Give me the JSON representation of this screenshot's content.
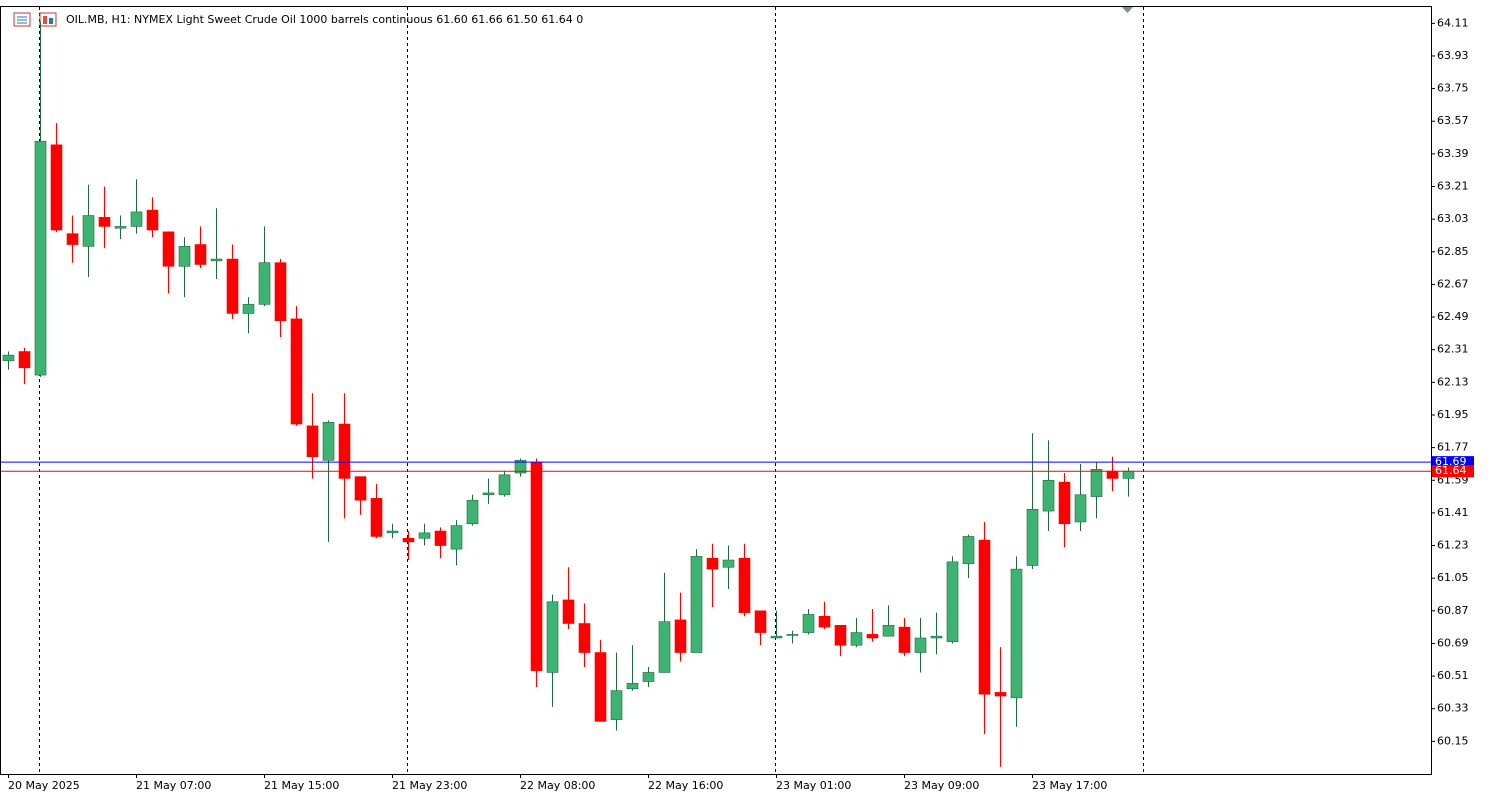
{
  "chart_data": {
    "type": "candlestick",
    "title": "OIL.MB, H1:  NYMEX Light Sweet Crude Oil 1000 barrels continuous  61.60 61.66 61.50 61.64  0",
    "categories": [
      "20 May 2025",
      null,
      null,
      null,
      null,
      null,
      null,
      null,
      "21 May 07:00",
      null,
      null,
      null,
      null,
      null,
      null,
      null,
      "21 May 15:00",
      null,
      null,
      null,
      null,
      null,
      null,
      null,
      "21 May 23:00",
      null,
      null,
      null,
      null,
      null,
      null,
      null,
      "22 May 08:00",
      null,
      null,
      null,
      null,
      null,
      null,
      null,
      "22 May 16:00",
      null,
      null,
      null,
      null,
      null,
      null,
      null,
      "23 May 01:00",
      null,
      null,
      null,
      null,
      null,
      null,
      null,
      "23 May 09:00",
      null,
      null,
      null,
      null,
      null,
      null,
      null,
      "23 May 17:00",
      null,
      null,
      null,
      null,
      null,
      null
    ],
    "open": [
      62.25,
      62.3,
      62.17,
      63.44,
      62.95,
      62.88,
      63.04,
      62.98,
      62.99,
      63.08,
      62.96,
      62.77,
      62.89,
      62.8,
      62.81,
      62.51,
      62.56,
      62.79,
      62.48,
      61.89,
      61.7,
      61.9,
      61.61,
      61.49,
      61.3,
      61.27,
      61.27,
      61.31,
      61.21,
      61.35,
      61.51,
      61.51,
      61.63,
      61.69,
      60.53,
      60.93,
      60.8,
      60.64,
      60.27,
      60.44,
      60.48,
      60.53,
      60.82,
      60.64,
      61.16,
      61.11,
      61.16,
      60.87,
      60.72,
      60.74,
      60.75,
      60.84,
      60.79,
      60.68,
      60.74,
      60.73,
      60.78,
      60.64,
      60.72,
      60.7,
      61.13,
      61.26,
      60.42,
      60.39,
      61.12,
      61.42,
      61.58,
      61.36,
      61.5,
      61.64,
      61.6
    ],
    "high": [
      62.3,
      62.32,
      64.12,
      63.56,
      63.05,
      63.22,
      63.21,
      63.05,
      63.25,
      63.15,
      62.96,
      62.93,
      62.99,
      63.09,
      62.89,
      62.6,
      62.99,
      62.81,
      62.55,
      62.07,
      61.92,
      62.07,
      61.61,
      61.57,
      61.35,
      61.31,
      61.35,
      61.33,
      61.37,
      61.51,
      61.6,
      61.64,
      61.71,
      61.71,
      60.96,
      61.11,
      60.91,
      60.71,
      60.64,
      60.68,
      60.56,
      61.08,
      60.97,
      61.21,
      61.24,
      61.23,
      61.24,
      60.87,
      60.87,
      60.76,
      60.88,
      60.92,
      60.79,
      60.83,
      60.88,
      60.9,
      60.83,
      60.83,
      60.86,
      61.17,
      61.29,
      61.36,
      60.67,
      61.17,
      61.85,
      61.81,
      61.63,
      61.68,
      61.69,
      61.72,
      61.66
    ],
    "low": [
      62.2,
      62.12,
      62.16,
      62.96,
      62.79,
      62.71,
      62.87,
      62.92,
      62.95,
      62.93,
      62.62,
      62.6,
      62.76,
      62.7,
      62.48,
      62.4,
      62.55,
      62.38,
      61.89,
      61.6,
      61.25,
      61.38,
      61.4,
      61.27,
      61.27,
      61.15,
      61.23,
      61.16,
      61.12,
      61.34,
      61.46,
      61.5,
      61.61,
      60.45,
      60.34,
      60.77,
      60.56,
      60.26,
      60.21,
      60.43,
      60.45,
      60.53,
      60.59,
      60.64,
      60.89,
      60.99,
      60.84,
      60.68,
      60.72,
      60.69,
      60.74,
      60.77,
      60.62,
      60.67,
      60.7,
      60.73,
      60.62,
      60.53,
      60.63,
      60.69,
      61.05,
      60.19,
      60.01,
      60.23,
      61.1,
      61.31,
      61.22,
      61.31,
      61.38,
      61.53,
      61.5
    ],
    "close": [
      62.28,
      62.21,
      63.46,
      62.97,
      62.89,
      63.05,
      62.99,
      62.99,
      63.07,
      62.97,
      62.77,
      62.88,
      62.78,
      62.81,
      62.51,
      62.56,
      62.79,
      62.47,
      61.9,
      61.72,
      61.91,
      61.6,
      61.48,
      61.28,
      61.31,
      61.25,
      61.3,
      61.23,
      61.34,
      61.48,
      61.52,
      61.62,
      61.7,
      60.54,
      60.92,
      60.8,
      60.64,
      60.26,
      60.43,
      60.47,
      60.53,
      60.81,
      60.64,
      61.17,
      61.1,
      61.15,
      60.86,
      60.75,
      60.73,
      60.74,
      60.85,
      60.78,
      60.68,
      60.75,
      60.72,
      60.79,
      60.64,
      60.72,
      60.73,
      61.14,
      61.28,
      60.41,
      60.4,
      61.1,
      61.43,
      61.59,
      61.35,
      61.51,
      61.65,
      61.6,
      61.64
    ],
    "up_color": "#3cb371",
    "down_color": "#ff0000",
    "ylim": [
      59.97,
      64.2
    ],
    "yticks": [
      64.11,
      63.93,
      63.75,
      63.57,
      63.39,
      63.21,
      63.03,
      62.85,
      62.67,
      62.49,
      62.31,
      62.13,
      61.95,
      61.77,
      61.59,
      61.41,
      61.23,
      61.05,
      60.87,
      60.69,
      60.51,
      60.33,
      60.15
    ],
    "price_lines": [
      {
        "value": 61.69,
        "color": "#0000ff"
      },
      {
        "value": 61.64,
        "color": "#ff0000"
      }
    ]
  }
}
